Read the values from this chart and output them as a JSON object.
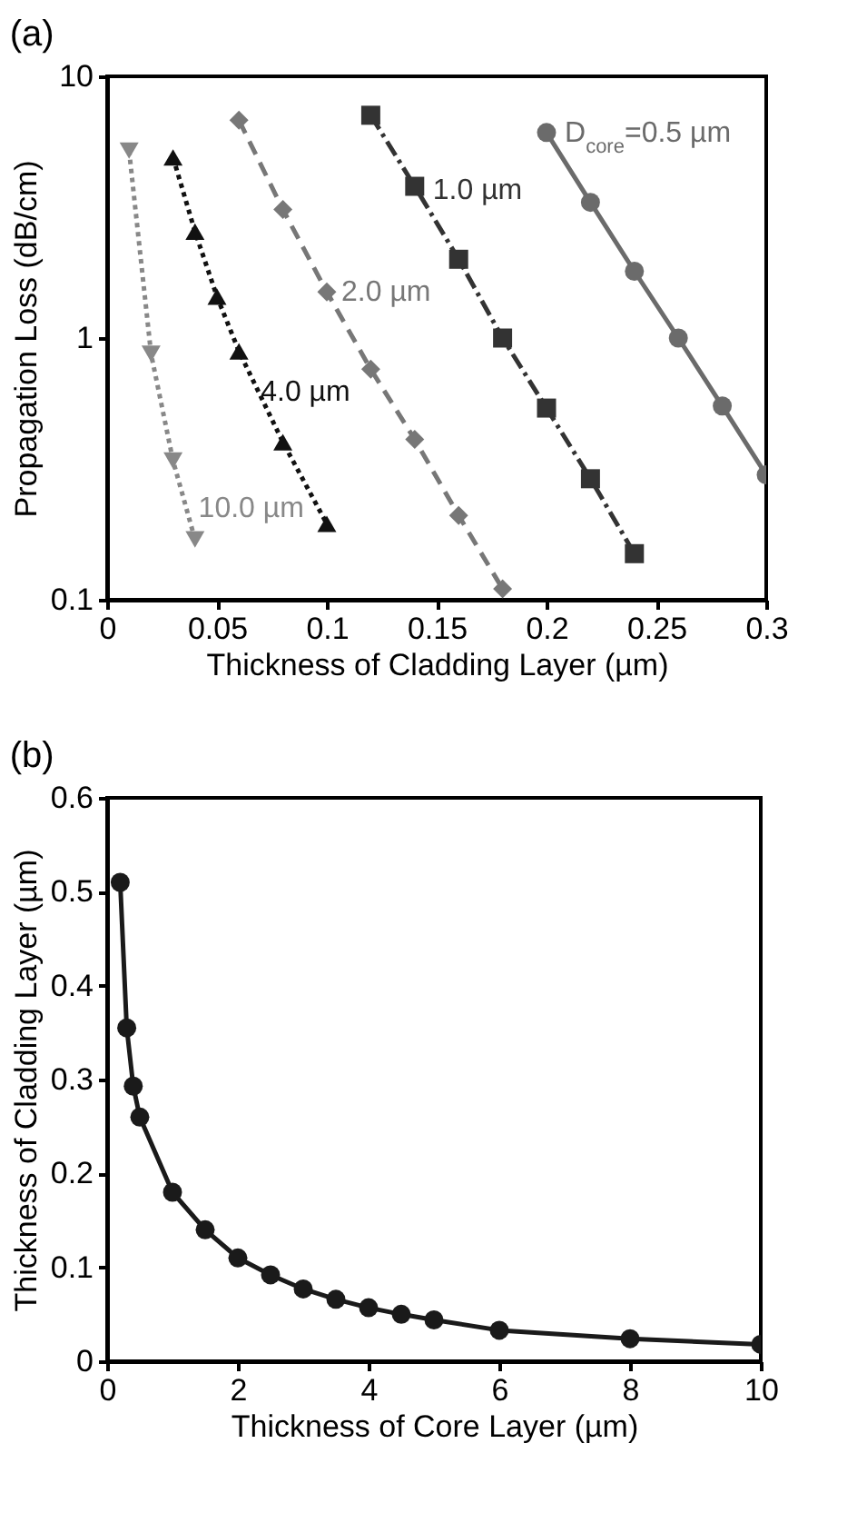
{
  "chart_data": [
    {
      "type": "line",
      "title": "(a)",
      "xlabel": "Thickness of Cladding Layer (µm)",
      "ylabel": "Propagation Loss (dB/cm)",
      "log": "y",
      "xlim": [
        0,
        0.3
      ],
      "ylim": [
        0.1,
        10
      ],
      "xticks": [
        0,
        0.05,
        0.1,
        0.15,
        0.2,
        0.25,
        0.3
      ],
      "yticks": [
        0.1,
        1,
        10
      ],
      "grid": false,
      "series": [
        {
          "name": "D$_{core}$=0.5 µm",
          "color": "#6b6b6b",
          "marker": "circle",
          "line_style": "solid",
          "x": [
            0.2,
            0.22,
            0.24,
            0.26,
            0.28,
            0.3
          ],
          "values": [
            6.1,
            3.3,
            1.8,
            1.0,
            0.55,
            0.3
          ]
        },
        {
          "name": "1.0 µm",
          "color": "#333333",
          "marker": "square",
          "line_style": "dashdot",
          "x": [
            0.12,
            0.14,
            0.16,
            0.18,
            0.2,
            0.22,
            0.24
          ],
          "values": [
            7.1,
            3.8,
            2.0,
            1.0,
            0.54,
            0.29,
            0.15
          ]
        },
        {
          "name": "2.0 µm",
          "color": "#777777",
          "marker": "diamond",
          "line_style": "dashed",
          "x": [
            0.06,
            0.08,
            0.1,
            0.12,
            0.14,
            0.16,
            0.18
          ],
          "values": [
            6.8,
            3.1,
            1.5,
            0.76,
            0.41,
            0.21,
            0.11
          ]
        },
        {
          "name": "4.0 µm",
          "color": "#111111",
          "marker": "triangle",
          "line_style": "dotted",
          "x": [
            0.03,
            0.04,
            0.05,
            0.06,
            0.08,
            0.1
          ],
          "values": [
            4.9,
            2.55,
            1.44,
            0.89,
            0.4,
            0.195
          ]
        },
        {
          "name": "10.0 µm",
          "color": "#888888",
          "marker": "triangle-down",
          "line_style": "dotted",
          "x": [
            0.01,
            0.02,
            0.03,
            0.04
          ],
          "values": [
            5.2,
            0.87,
            0.34,
            0.17
          ]
        }
      ]
    },
    {
      "type": "line",
      "title": "(b)",
      "xlabel": "Thickness of Core Layer (µm)",
      "ylabel": "Thickness of Cladding Layer (µm)",
      "xlim": [
        0,
        10
      ],
      "ylim": [
        0,
        0.6
      ],
      "xticks": [
        0,
        2,
        4,
        6,
        8,
        10
      ],
      "yticks": [
        0,
        0.1,
        0.2,
        0.3,
        0.4,
        0.5,
        0.6
      ],
      "grid": false,
      "marker": "circle",
      "line_style": "solid",
      "series": [
        {
          "color": "#1a1a1a",
          "x": [
            0.2,
            0.3,
            0.4,
            0.5,
            1,
            1.5,
            2,
            2.5,
            3,
            3.5,
            4,
            4.5,
            5,
            6,
            8,
            10
          ],
          "values": [
            0.51,
            0.355,
            0.293,
            0.26,
            0.18,
            0.14,
            0.11,
            0.092,
            0.077,
            0.066,
            0.057,
            0.05,
            0.044,
            0.033,
            0.024,
            0.018
          ]
        }
      ]
    }
  ]
}
